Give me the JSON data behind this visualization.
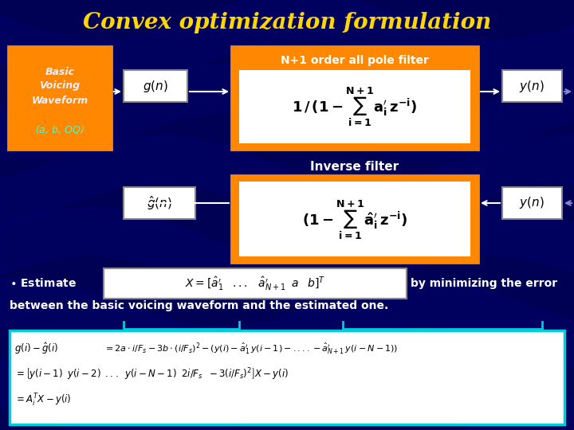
{
  "title": "Convex optimization formulation",
  "title_color": "#FFD700",
  "slide_bg": "#000055",
  "orange_color": "#FF8800",
  "white_color": "#FFFFFF",
  "text_white": "#FFFFFF",
  "text_black": "#000000",
  "cyan_border": "#00CCDD",
  "box1_text_white": "#E8E8FF",
  "box1_italic_color": "#00FFCC",
  "filter_label": "N+1 order all pole filter",
  "inverse_label": "Inverse filter"
}
